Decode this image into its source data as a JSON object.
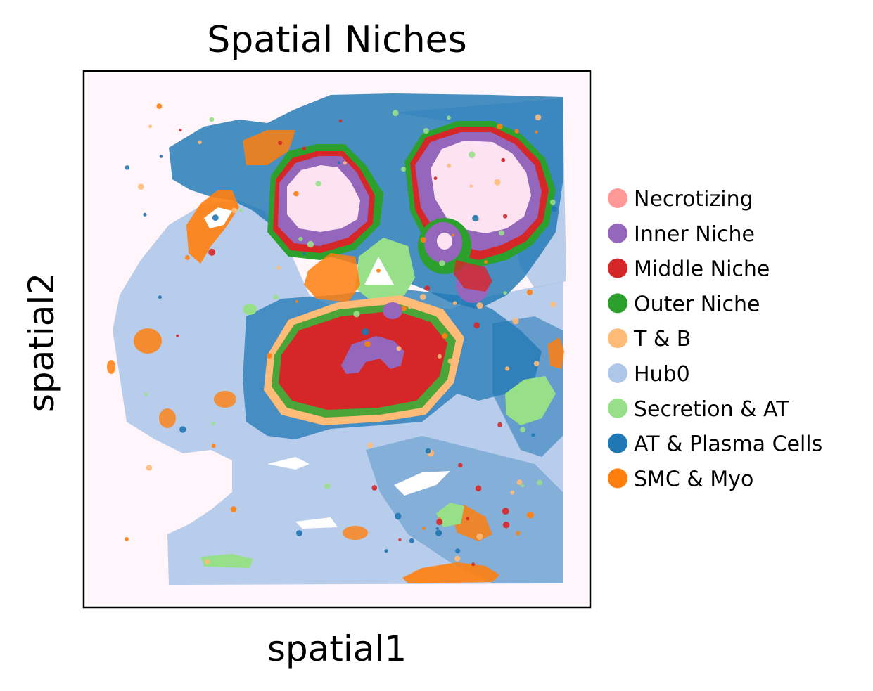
{
  "chart_data": {
    "type": "scatter",
    "title": "Spatial Niches",
    "xlabel": "spatial1",
    "ylabel": "spatial2",
    "grid": false,
    "ticks": false,
    "legend": "right",
    "background_tissue_color": "#fde3f1",
    "series": [
      {
        "name": "Necrotizing",
        "color": "#ff9896"
      },
      {
        "name": "Inner Niche",
        "color": "#9467bd"
      },
      {
        "name": "Middle Niche",
        "color": "#d62728"
      },
      {
        "name": "Outer Niche",
        "color": "#2ca02c"
      },
      {
        "name": "T & B",
        "color": "#ffbb78"
      },
      {
        "name": "Hub0",
        "color": "#aec7e8"
      },
      {
        "name": "Secretion & AT",
        "color": "#98df8a"
      },
      {
        "name": "AT & Plasma Cells",
        "color": "#1f77b4"
      },
      {
        "name": "SMC & Myo",
        "color": "#ff7f0e"
      }
    ]
  }
}
